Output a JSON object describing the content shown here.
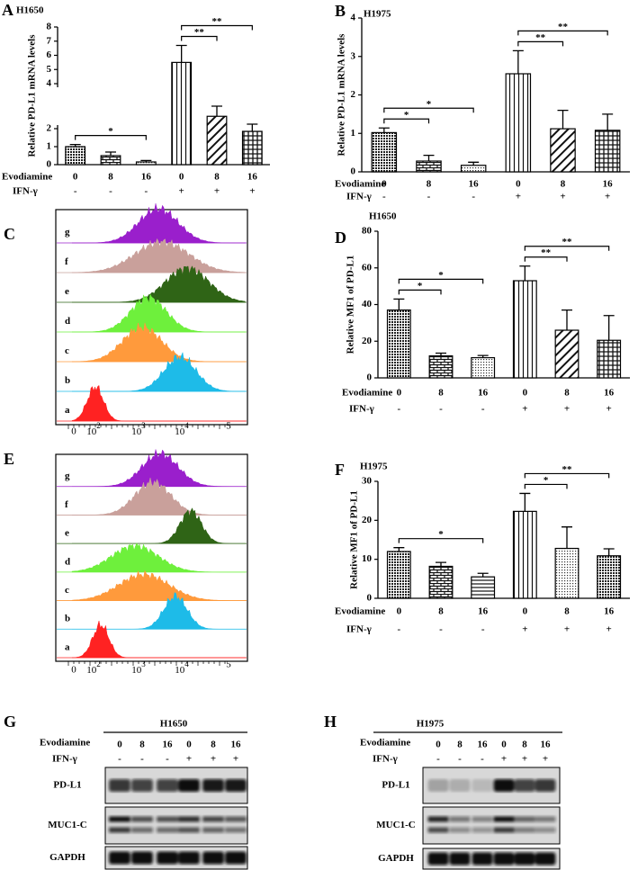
{
  "chart_data": [
    {
      "panel": "A",
      "type": "bar",
      "title": "H1650",
      "y_label": "Relative PD-L1 mRNA levels",
      "row_label": "Evodiamine",
      "categories": [
        "0",
        "8",
        "16",
        "0",
        "8",
        "16"
      ],
      "ifn_label": "IFN-γ",
      "ifn": [
        "-",
        "-",
        "-",
        "+",
        "+",
        "+"
      ],
      "values": [
        1.0,
        0.5,
        0.15,
        5.5,
        2.55,
        1.85
      ],
      "errors": [
        0.12,
        0.2,
        0.08,
        1.2,
        0.45,
        0.35
      ],
      "ylim": [
        0,
        8
      ],
      "axis_break": [
        2,
        4
      ],
      "yticks": [
        0,
        1,
        2,
        4,
        5,
        6,
        7,
        8
      ],
      "brackets": [
        {
          "from": 0,
          "to": 2,
          "label": "*"
        },
        {
          "from": 3,
          "to": 4,
          "label": "**"
        },
        {
          "from": 3,
          "to": 5,
          "label": "**"
        }
      ]
    },
    {
      "panel": "B",
      "type": "bar",
      "title": "H1975",
      "y_label": "Relative PD-L1 mRNA levels",
      "row_label": "Evodiamine",
      "categories": [
        "0",
        "8",
        "16",
        "0",
        "8",
        "16"
      ],
      "ifn_label": "IFN-γ",
      "ifn": [
        "-",
        "-",
        "-",
        "+",
        "+",
        "+"
      ],
      "values": [
        1.02,
        0.28,
        0.17,
        2.55,
        1.12,
        1.08
      ],
      "errors": [
        0.12,
        0.15,
        0.08,
        0.6,
        0.48,
        0.42
      ],
      "ylim": [
        0,
        4
      ],
      "yticks": [
        0,
        1,
        2,
        3,
        4
      ],
      "brackets": [
        {
          "from": 0,
          "to": 1,
          "label": "*"
        },
        {
          "from": 0,
          "to": 2,
          "label": "*"
        },
        {
          "from": 3,
          "to": 4,
          "label": "**"
        },
        {
          "from": 3,
          "to": 5,
          "label": "**"
        }
      ]
    },
    {
      "panel": "D",
      "type": "bar",
      "title": "H1650",
      "y_label": "Relative MF1 of PD-L1",
      "row_label": "Evodiamine",
      "categories": [
        "0",
        "8",
        "16",
        "0",
        "8",
        "16"
      ],
      "ifn_label": "IFN-γ",
      "ifn": [
        "-",
        "-",
        "-",
        "+",
        "+",
        "+"
      ],
      "values": [
        37,
        12,
        11,
        53,
        26,
        20.5
      ],
      "errors": [
        6,
        1.5,
        1.2,
        8,
        11,
        13.5
      ],
      "ylim": [
        0,
        80
      ],
      "yticks": [
        0,
        20,
        40,
        60,
        80
      ],
      "brackets": [
        {
          "from": 0,
          "to": 1,
          "label": "*"
        },
        {
          "from": 0,
          "to": 2,
          "label": "*"
        },
        {
          "from": 3,
          "to": 4,
          "label": "**"
        },
        {
          "from": 3,
          "to": 5,
          "label": "**"
        }
      ]
    },
    {
      "panel": "F",
      "type": "bar",
      "title": "H1975",
      "y_label": "Relative MF1 of PD-L1",
      "row_label": "Evodiamine",
      "categories": [
        "0",
        "8",
        "16",
        "0",
        "8",
        "16"
      ],
      "ifn_label": "IFN-γ",
      "ifn": [
        "-",
        "-",
        "-",
        "+",
        "+",
        "+"
      ],
      "values": [
        12,
        8.2,
        5.5,
        22.3,
        12.8,
        10.9
      ],
      "errors": [
        1,
        1,
        0.9,
        4.6,
        5.5,
        1.8
      ],
      "ylim": [
        0,
        30
      ],
      "yticks": [
        0,
        10,
        20,
        30
      ],
      "brackets": [
        {
          "from": 0,
          "to": 2,
          "label": "*"
        },
        {
          "from": 3,
          "to": 4,
          "label": "*"
        },
        {
          "from": 3,
          "to": 5,
          "label": "**"
        }
      ]
    }
  ],
  "flow_panels": [
    {
      "panel": "C",
      "curves": [
        {
          "label": "g",
          "color": "#9a1fcc"
        },
        {
          "label": "f",
          "color": "#c9a09b"
        },
        {
          "label": "e",
          "color": "#2f6416"
        },
        {
          "label": "d",
          "color": "#6ef03c"
        },
        {
          "label": "c",
          "color": "#ff9a3c"
        },
        {
          "label": "b",
          "color": "#1ebbe8"
        },
        {
          "label": "a",
          "color": "#ff2222"
        }
      ],
      "x_tick_labels": [
        "0",
        {
          "base": "10",
          "exp": "2"
        },
        {
          "base": "10",
          "exp": "3"
        },
        {
          "base": "10",
          "exp": "4"
        },
        "5"
      ]
    },
    {
      "panel": "E",
      "curves": [
        {
          "label": "g",
          "color": "#9a1fcc"
        },
        {
          "label": "f",
          "color": "#c9a09b"
        },
        {
          "label": "e",
          "color": "#2f6416"
        },
        {
          "label": "d",
          "color": "#6ef03c"
        },
        {
          "label": "c",
          "color": "#ff9a3c"
        },
        {
          "label": "b",
          "color": "#1ebbe8"
        },
        {
          "label": "a",
          "color": "#ff2222"
        }
      ],
      "x_tick_labels": [
        "0",
        {
          "base": "10",
          "exp": "2"
        },
        {
          "base": "10",
          "exp": "3"
        },
        {
          "base": "10",
          "exp": "4"
        },
        "5"
      ]
    }
  ],
  "blots": [
    {
      "panel": "G",
      "title": "H1650",
      "row_label": "Evodiamine",
      "doses": [
        "0",
        "8",
        "16",
        "0",
        "8",
        "16"
      ],
      "ifn_label": "IFN-γ",
      "ifn": [
        "-",
        "-",
        "-",
        "+",
        "+",
        "+"
      ],
      "proteins": [
        "PD-L1",
        "MUC1-C",
        "GAPDH"
      ]
    },
    {
      "panel": "H",
      "title": "H1975",
      "row_label": "Evodiamine",
      "doses": [
        "0",
        "8",
        "16",
        "0",
        "8",
        "16"
      ],
      "ifn_label": "IFN-γ",
      "ifn": [
        "-",
        "-",
        "-",
        "+",
        "+",
        "+"
      ],
      "proteins": [
        "PD-L1",
        "MUC1-C",
        "GAPDH"
      ]
    }
  ]
}
